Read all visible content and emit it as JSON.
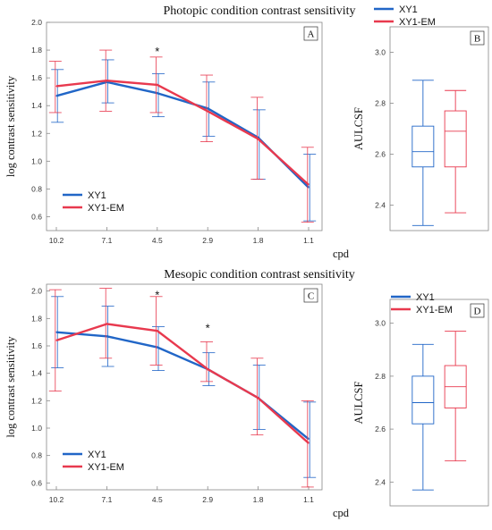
{
  "colors": {
    "xy1": "#2166c7",
    "xy1em": "#e8394e",
    "axis": "#888888"
  },
  "chart_data": [
    {
      "id": "A",
      "type": "line",
      "panel_label": "A",
      "title": "Photopic condition contrast sensitivity",
      "xlabel": "cpd",
      "ylabel": "log contrast sensitivity",
      "categories": [
        "10.2",
        "7.1",
        "4.5",
        "2.9",
        "1.8",
        "1.1"
      ],
      "ylim": [
        0.5,
        2.0
      ],
      "yticks": [
        0.6,
        0.8,
        1.0,
        1.2,
        1.4,
        1.6,
        1.8,
        2.0
      ],
      "legend": "bottom-left",
      "series": [
        {
          "name": "XY1",
          "color": "#2166c7",
          "values": [
            1.47,
            1.57,
            1.49,
            1.38,
            1.17,
            0.81
          ],
          "err_low": [
            1.28,
            1.42,
            1.32,
            1.18,
            0.87,
            0.57
          ],
          "err_high": [
            1.66,
            1.73,
            1.63,
            1.57,
            1.37,
            1.05
          ]
        },
        {
          "name": "XY1-EM",
          "color": "#e8394e",
          "values": [
            1.54,
            1.58,
            1.55,
            1.36,
            1.16,
            0.83
          ],
          "err_low": [
            1.35,
            1.36,
            1.35,
            1.14,
            0.87,
            0.56
          ],
          "err_high": [
            1.72,
            1.8,
            1.75,
            1.62,
            1.46,
            1.1
          ]
        }
      ],
      "annotations": [
        {
          "text": "*",
          "x": "4.5",
          "y": 1.8
        }
      ]
    },
    {
      "id": "B",
      "type": "box",
      "panel_label": "B",
      "ylabel": "AULCSF",
      "legend": "top-left",
      "ylim": [
        2.3,
        3.1
      ],
      "yticks": [
        2.4,
        2.6,
        2.8,
        3.0
      ],
      "series": [
        {
          "name": "XY1",
          "color": "#2166c7",
          "min": 2.32,
          "q1": 2.55,
          "median": 2.61,
          "q3": 2.71,
          "max": 2.89
        },
        {
          "name": "XY1-EM",
          "color": "#e8394e",
          "min": 2.37,
          "q1": 2.55,
          "median": 2.69,
          "q3": 2.77,
          "max": 2.85
        }
      ]
    },
    {
      "id": "C",
      "type": "line",
      "panel_label": "C",
      "title": "Mesopic condition contrast sensitivity",
      "xlabel": "cpd",
      "ylabel": "log contrast sensitivity",
      "categories": [
        "10.2",
        "7.1",
        "4.5",
        "2.9",
        "1.8",
        "1.1"
      ],
      "ylim": [
        0.55,
        2.05
      ],
      "yticks": [
        0.6,
        0.8,
        1.0,
        1.2,
        1.4,
        1.6,
        1.8,
        2.0
      ],
      "legend": "bottom-left",
      "series": [
        {
          "name": "XY1",
          "color": "#2166c7",
          "values": [
            1.7,
            1.67,
            1.59,
            1.43,
            1.22,
            0.92
          ],
          "err_low": [
            1.44,
            1.45,
            1.42,
            1.31,
            0.99,
            0.64
          ],
          "err_high": [
            1.96,
            1.89,
            1.74,
            1.55,
            1.46,
            1.19
          ]
        },
        {
          "name": "XY1-EM",
          "color": "#e8394e",
          "values": [
            1.64,
            1.76,
            1.71,
            1.43,
            1.22,
            0.89
          ],
          "err_low": [
            1.27,
            1.51,
            1.46,
            1.34,
            0.95,
            0.57
          ],
          "err_high": [
            2.01,
            2.02,
            1.96,
            1.63,
            1.51,
            1.2
          ]
        }
      ],
      "annotations": [
        {
          "text": "*",
          "x": "4.5",
          "y": 1.98
        },
        {
          "text": "*",
          "x": "2.9",
          "y": 1.74
        }
      ]
    },
    {
      "id": "D",
      "type": "box",
      "panel_label": "D",
      "ylabel": "AULCSF",
      "legend": "top-left",
      "ylim": [
        2.31,
        3.09
      ],
      "yticks": [
        2.4,
        2.6,
        2.8,
        3.0
      ],
      "series": [
        {
          "name": "XY1",
          "color": "#2166c7",
          "min": 2.37,
          "q1": 2.62,
          "median": 2.7,
          "q3": 2.8,
          "max": 2.92
        },
        {
          "name": "XY1-EM",
          "color": "#e8394e",
          "min": 2.48,
          "q1": 2.68,
          "median": 2.76,
          "q3": 2.84,
          "max": 2.97
        }
      ]
    }
  ]
}
